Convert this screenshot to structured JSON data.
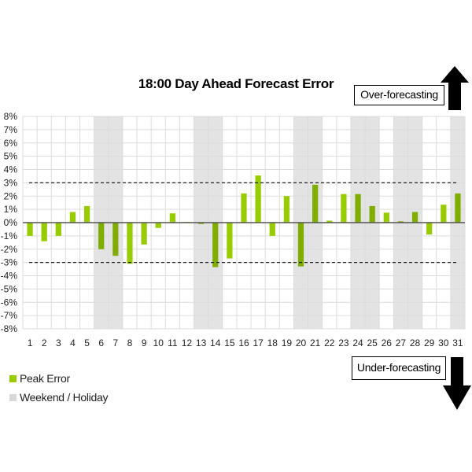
{
  "chart_data": {
    "type": "bar",
    "title": "18:00 Day Ahead Forecast Error",
    "xlabel": "",
    "ylabel": "",
    "ylim": [
      -8,
      8
    ],
    "y_ticks": [
      "8%",
      "7%",
      "6%",
      "5%",
      "4%",
      "3%",
      "2%",
      "1%",
      "0%",
      "-1%",
      "-2%",
      "-3%",
      "-4%",
      "-5%",
      "-6%",
      "-7%",
      "-8%"
    ],
    "categories": [
      "1",
      "2",
      "3",
      "4",
      "5",
      "6",
      "7",
      "8",
      "9",
      "10",
      "11",
      "12",
      "13",
      "14",
      "15",
      "16",
      "17",
      "18",
      "19",
      "20",
      "21",
      "22",
      "23",
      "24",
      "25",
      "26",
      "27",
      "28",
      "29",
      "30",
      "31"
    ],
    "series": [
      {
        "name": "Peak Error",
        "unit": "%",
        "values": [
          -1.0,
          -1.4,
          -1.0,
          0.8,
          1.25,
          -2.0,
          -2.5,
          -3.1,
          -1.65,
          -0.4,
          0.7,
          0.05,
          -0.1,
          -3.35,
          -2.7,
          2.2,
          3.55,
          -1.0,
          2.0,
          -3.3,
          2.85,
          0.15,
          2.15,
          2.15,
          1.25,
          0.75,
          0.1,
          0.8,
          -0.9,
          1.35,
          2.2
        ]
      }
    ],
    "weekend_holiday_days": [
      6,
      7,
      13,
      14,
      20,
      21,
      24,
      25,
      27,
      28,
      31
    ],
    "threshold_lines": [
      3,
      -3
    ],
    "grid": true,
    "legend": [
      "Peak Error",
      "Weekend / Holiday"
    ],
    "legend_placement": "bottom-left",
    "colors": {
      "bar": "#99cc00",
      "bar_weekend": "#7fad00",
      "weekend_band": "#e3e3e3",
      "grid": "#dcdcdc"
    }
  },
  "annotations": {
    "over": "Over-forecasting",
    "under": "Under-forecasting"
  }
}
